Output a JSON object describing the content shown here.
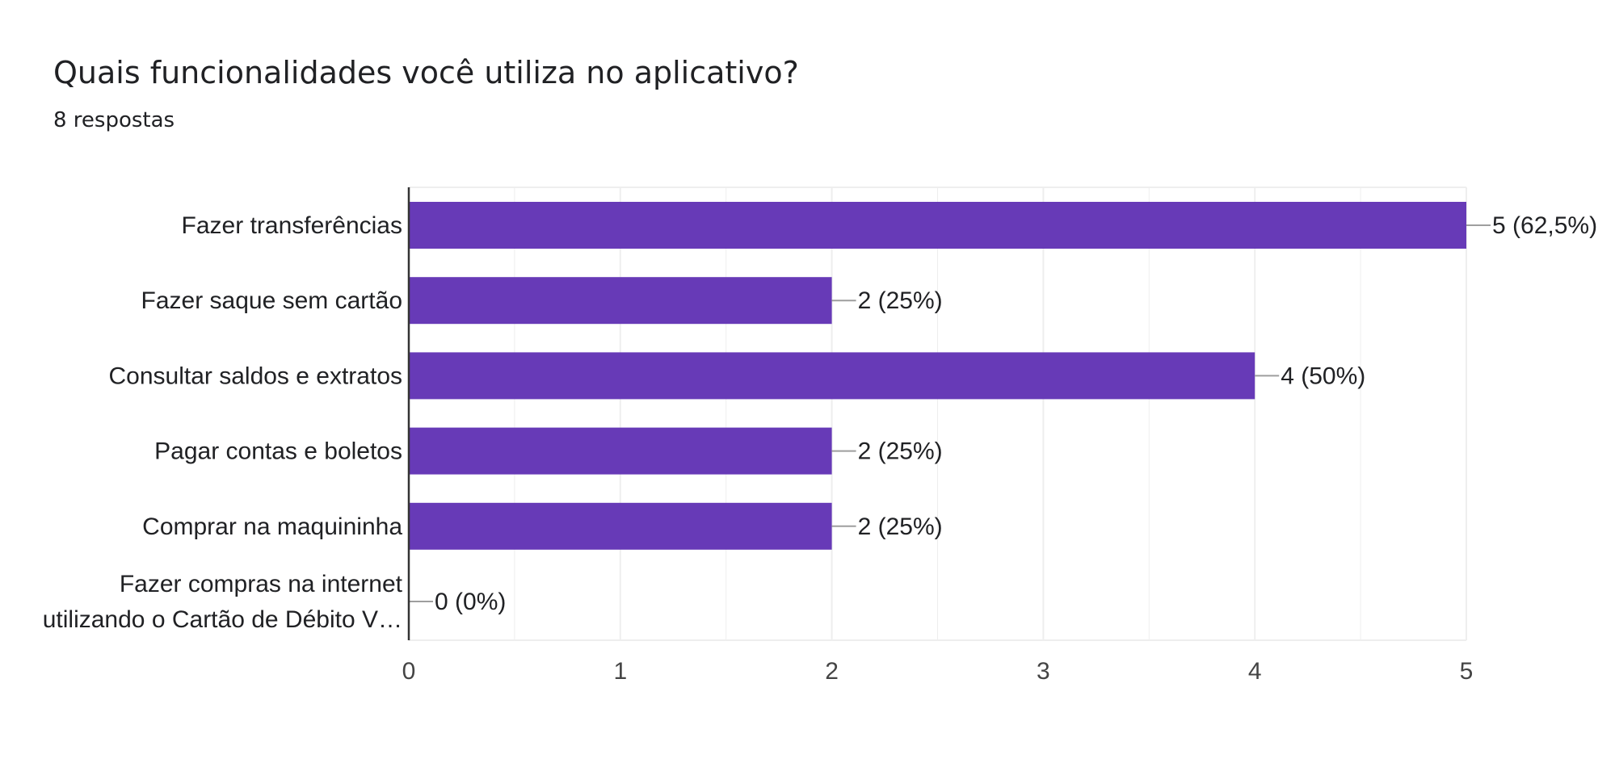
{
  "header": {
    "title": "Quais funcionalidades você utiliza no aplicativo?",
    "response_count": "8 respostas"
  },
  "colors": {
    "bar": "#673ab7",
    "text": "#202124",
    "axis_text": "#444444",
    "grid": "#eeeeee",
    "leader": "#9e9e9e"
  },
  "chart_data": {
    "type": "bar",
    "orientation": "horizontal",
    "categories": [
      [
        "Fazer transferências"
      ],
      [
        "Fazer saque sem cartão"
      ],
      [
        "Consultar saldos e extratos"
      ],
      [
        "Pagar contas e boletos"
      ],
      [
        "Comprar na maquininha"
      ],
      [
        "Fazer compras na internet",
        "utilizando o Cartão de Débito V…"
      ]
    ],
    "values": [
      5,
      2,
      4,
      2,
      2,
      0
    ],
    "data_labels": [
      "5 (62,5%)",
      "2 (25%)",
      "4 (50%)",
      "2 (25%)",
      "2 (25%)",
      "0 (0%)"
    ],
    "xlim": [
      0,
      5
    ],
    "x_ticks": [
      "0",
      "1",
      "2",
      "3",
      "4",
      "5"
    ],
    "grid": true,
    "legend": "none"
  }
}
